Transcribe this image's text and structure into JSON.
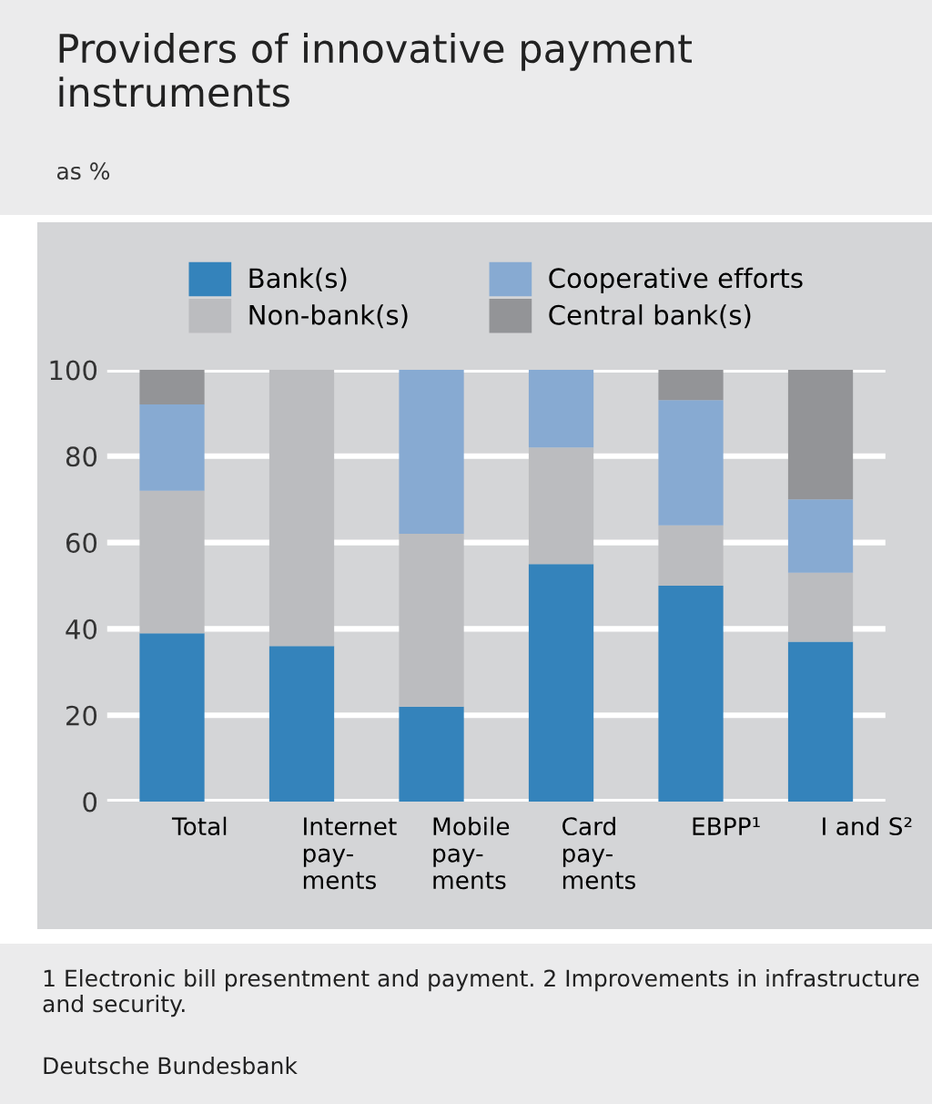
{
  "chart_data": {
    "type": "bar",
    "title": "Providers of innovative payment instruments",
    "subtitle": "as %",
    "categories": [
      "Total",
      "Internet\npay-\nments",
      "Mobile\npay-\nments",
      "Card\npay-\nments",
      "EBPP¹",
      "I and S²"
    ],
    "stacked": true,
    "series": [
      {
        "name": "Bank(s)",
        "color": "#3483bb",
        "values": [
          39,
          36,
          22,
          55,
          50,
          37
        ]
      },
      {
        "name": "Non-bank(s)",
        "color": "#bbbcbf",
        "values": [
          33,
          64,
          40,
          27,
          14,
          16
        ]
      },
      {
        "name": "Cooperative efforts",
        "color": "#87aad2",
        "values": [
          20,
          null,
          38,
          18,
          29,
          17
        ]
      },
      {
        "name": "Central bank(s)",
        "color": "#939497",
        "values": [
          8,
          null,
          null,
          null,
          7,
          30
        ]
      }
    ],
    "ylim": [
      0,
      100
    ],
    "yticks": [
      0,
      20,
      40,
      60,
      80,
      100
    ],
    "grid": "y",
    "legend": "top",
    "annotations": [
      "1 Electronic bill presentment and payment. 2 Improvements in infrastructure and security.",
      "Deutsche Bundesbank"
    ]
  }
}
